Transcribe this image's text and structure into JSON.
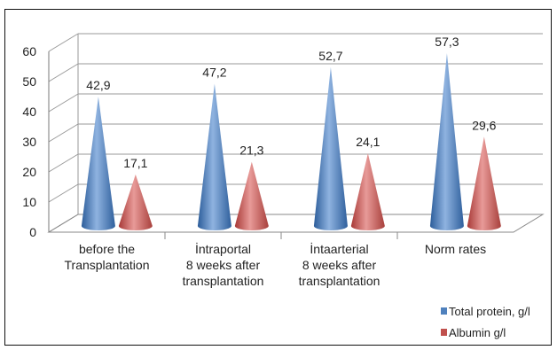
{
  "chart_data": {
    "type": "bar",
    "shape": "cone-3d",
    "categories": [
      [
        "before the",
        "Transplantation"
      ],
      [
        "İntraportal",
        "8 weeks after",
        "transplantation"
      ],
      [
        "İntaarterial",
        "8 weeks after",
        "transplantation"
      ],
      [
        "Norm rates"
      ]
    ],
    "series": [
      {
        "name": "Total protein, g/l",
        "values": [
          42.9,
          47.2,
          52.7,
          57.3
        ],
        "labels": [
          "42,9",
          "47,2",
          "52,7",
          "57,3"
        ],
        "color": "#4f81bd"
      },
      {
        "name": "Albumin g/l",
        "values": [
          17.1,
          21.3,
          24.1,
          29.6
        ],
        "labels": [
          "17,1",
          "21,3",
          "24,1",
          "29,6"
        ],
        "color": "#c0504d"
      }
    ],
    "title": "",
    "xlabel": "",
    "ylabel": "",
    "ylim": [
      0,
      60
    ],
    "yticks": [
      0,
      10,
      20,
      30,
      40,
      50,
      60
    ],
    "grid": true,
    "legend": "bottom-right"
  }
}
